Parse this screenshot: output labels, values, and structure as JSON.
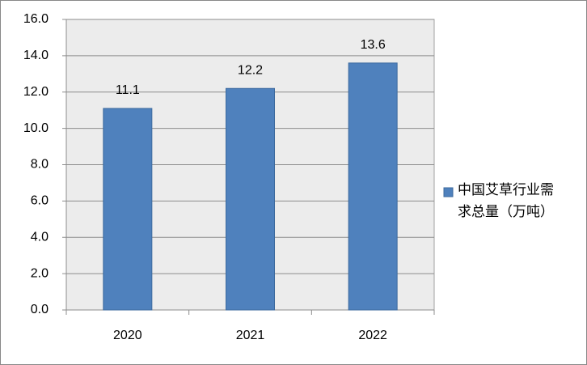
{
  "chart_data": {
    "type": "bar",
    "categories": [
      "2020",
      "2021",
      "2022"
    ],
    "series": [
      {
        "name": "中国艾草行业需求总量（万吨）",
        "color": "#4f81bd",
        "values": [
          11.1,
          12.2,
          13.6
        ]
      }
    ],
    "ylim": [
      0,
      16
    ],
    "yticks": [
      {
        "value": 0,
        "label": "0.0"
      },
      {
        "value": 2,
        "label": "2.0"
      },
      {
        "value": 4,
        "label": "4.0"
      },
      {
        "value": 6,
        "label": "6.0"
      },
      {
        "value": 8,
        "label": "8.0"
      },
      {
        "value": 10,
        "label": "10.0"
      },
      {
        "value": 12,
        "label": "12.0"
      },
      {
        "value": 14,
        "label": "14.0"
      },
      {
        "value": 16,
        "label": "16.0"
      }
    ],
    "grid": true
  }
}
